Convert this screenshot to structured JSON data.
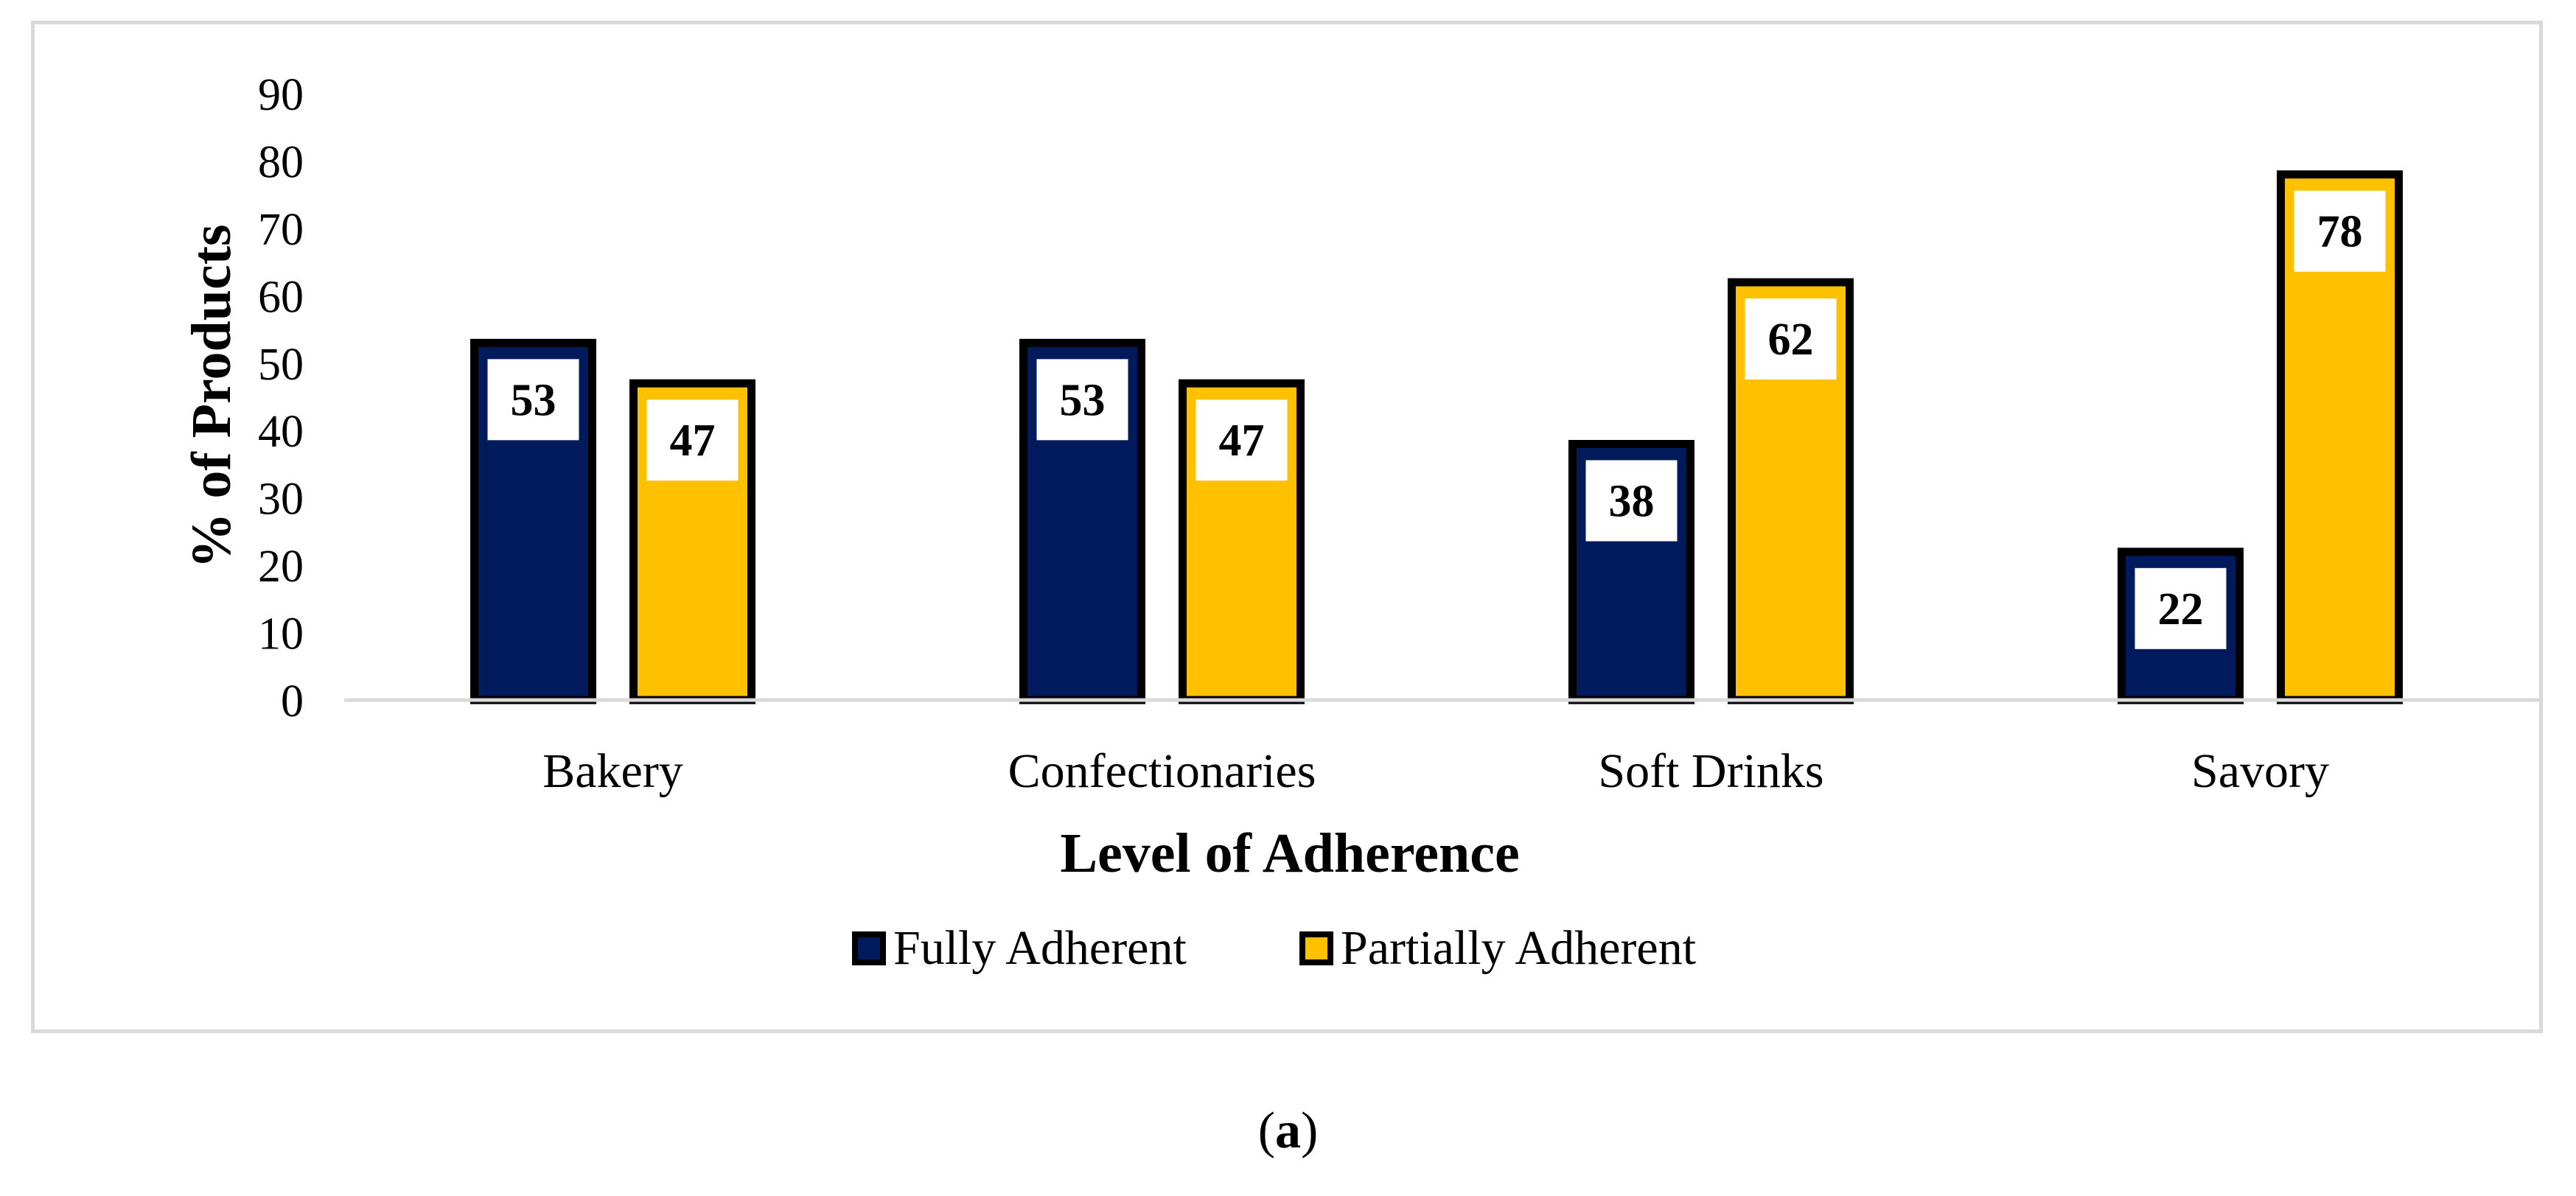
{
  "caption": {
    "open": "(",
    "letter": "a",
    "close": ")"
  },
  "colors": {
    "series_fully": "#001a5c",
    "series_partially": "#ffc000",
    "outline": "#000000",
    "axis_line": "#d9d9d9",
    "frame": "#d9d9d9"
  },
  "chart_data": {
    "type": "bar",
    "title": "",
    "xlabel": "Level of Adherence",
    "ylabel": "% of Products",
    "ylim": [
      0,
      90
    ],
    "yticks": [
      0,
      10,
      20,
      30,
      40,
      50,
      60,
      70,
      80,
      90
    ],
    "grid": false,
    "legend_position": "bottom",
    "categories": [
      "Bakery",
      "Confectionaries",
      "Soft Drinks",
      "Savory"
    ],
    "series": [
      {
        "name": "Fully Adherent",
        "values": [
          53,
          53,
          38,
          22
        ]
      },
      {
        "name": "Partially Adherent",
        "values": [
          47,
          47,
          62,
          78
        ]
      }
    ]
  }
}
